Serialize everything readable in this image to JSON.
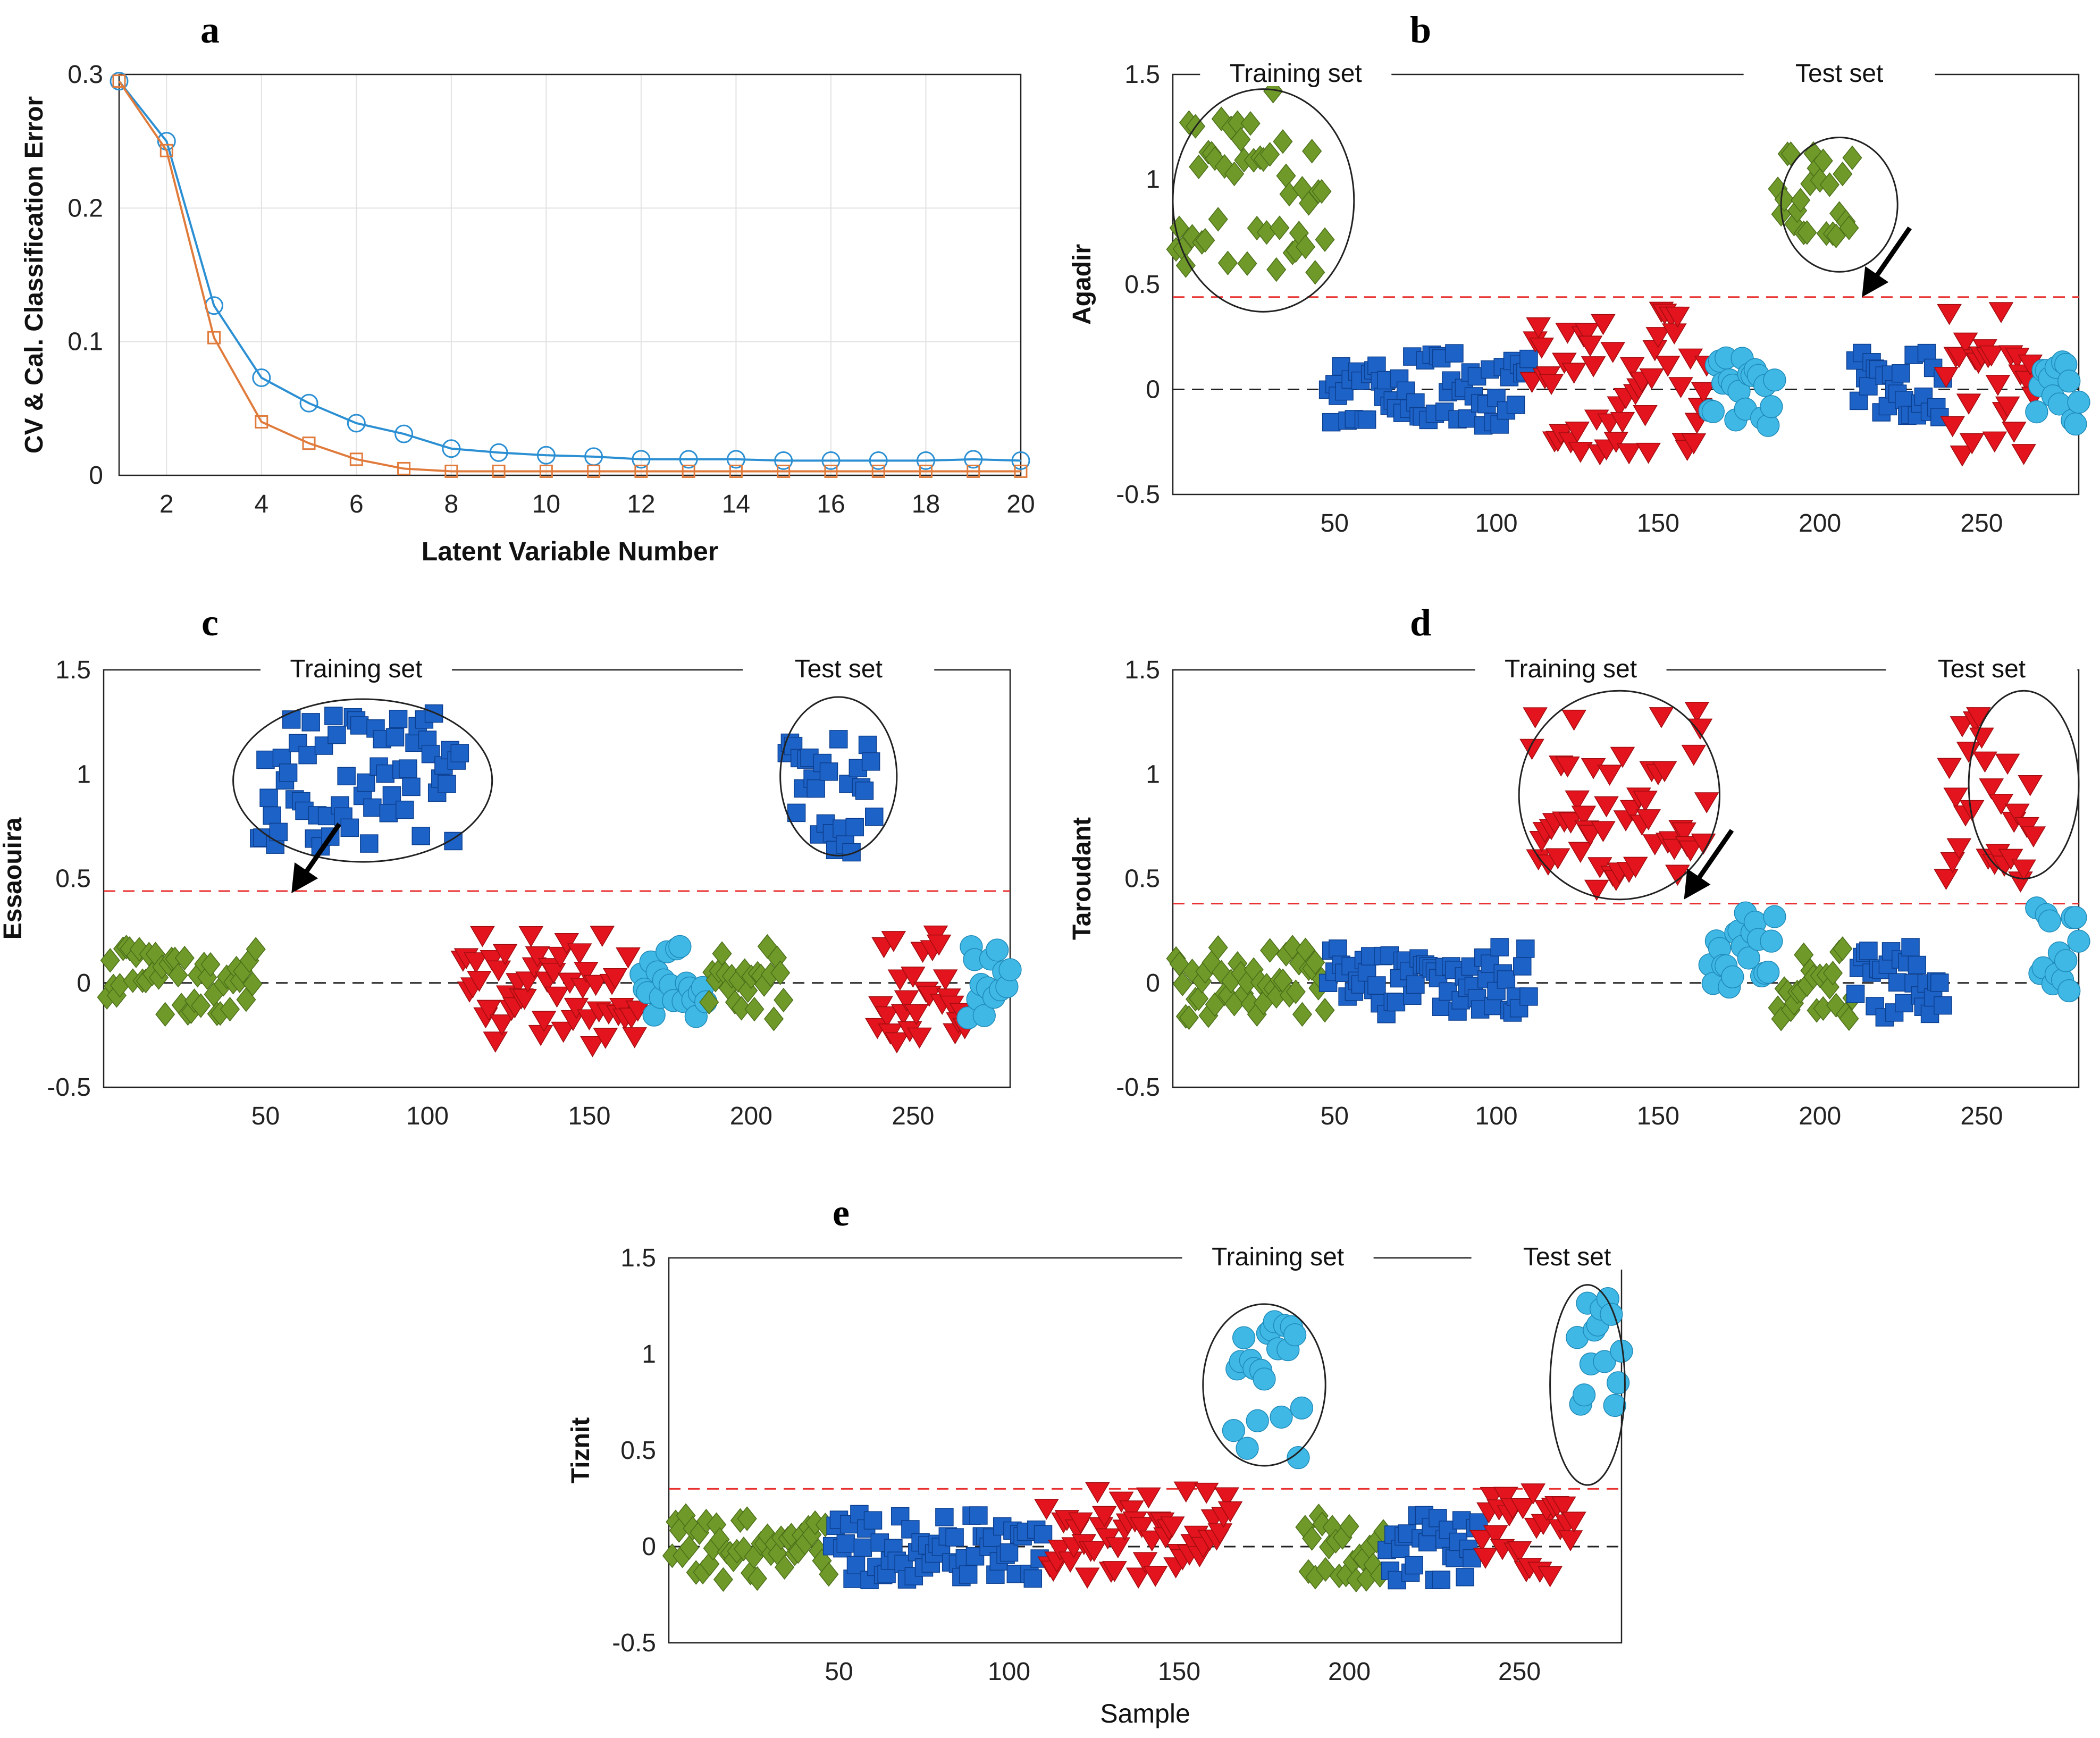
{
  "colors": {
    "green": "#6f9a2a",
    "green_edge": "#4a6e18",
    "blue": "#1d62c6",
    "blue_edge": "#0c3f8f",
    "red": "#e3141d",
    "red_edge": "#a10c10",
    "cyan": "#3fb8e6",
    "cyan_edge": "#1f8ab8",
    "cv_line": "#2b8fd3",
    "cal_line": "#e07b3c",
    "threshold": "#e83030",
    "zero": "#222222"
  },
  "chart_data": [
    {
      "id": "a",
      "letter": "a",
      "type": "line",
      "title": "",
      "xlabel": "Latent Variable Number",
      "ylabel": "CV & Cal. Classification Error",
      "xlim": [
        1,
        20
      ],
      "ylim": [
        0,
        0.3
      ],
      "xticks": [
        2,
        4,
        6,
        8,
        10,
        12,
        14,
        16,
        18,
        20
      ],
      "yticks": [
        0,
        0.1,
        0.2,
        0.3
      ],
      "x": [
        1,
        2,
        3,
        4,
        5,
        6,
        7,
        8,
        9,
        10,
        11,
        12,
        13,
        14,
        15,
        16,
        17,
        18,
        19,
        20
      ],
      "series": [
        {
          "name": "CV",
          "marker": "circle",
          "values": [
            0.295,
            0.25,
            0.127,
            0.073,
            0.054,
            0.039,
            0.031,
            0.02,
            0.017,
            0.015,
            0.014,
            0.012,
            0.012,
            0.012,
            0.011,
            0.011,
            0.011,
            0.011,
            0.012,
            0.011
          ]
        },
        {
          "name": "Cal",
          "marker": "square",
          "values": [
            0.295,
            0.243,
            0.103,
            0.04,
            0.024,
            0.012,
            0.005,
            0.003,
            0.003,
            0.003,
            0.003,
            0.003,
            0.003,
            0.003,
            0.003,
            0.003,
            0.003,
            0.003,
            0.003,
            0.003
          ]
        }
      ]
    },
    {
      "id": "b",
      "letter": "b",
      "type": "scatter",
      "ylabel": "Agadir",
      "xlabel": "",
      "xlim": [
        0,
        280
      ],
      "ylim": [
        -0.5,
        1.5
      ],
      "xticks": [
        50,
        100,
        150,
        200,
        250
      ],
      "yticks": [
        -0.5,
        0,
        0.5,
        1,
        1.5
      ],
      "threshold": 0.44,
      "target_class": "green",
      "annotations": [
        {
          "text": "Training set",
          "x": 38
        },
        {
          "text": "Test set",
          "x": 206
        }
      ],
      "circles": [
        {
          "cx": 28,
          "cy": 0.9,
          "rx": 28,
          "ry": 0.53
        },
        {
          "cx": 206,
          "cy": 0.88,
          "rx": 18,
          "ry": 0.32
        }
      ],
      "arrow": {
        "x": 213,
        "y": 0.44
      }
    },
    {
      "id": "c",
      "letter": "c",
      "type": "scatter",
      "ylabel": "Essaouira",
      "xlabel": "",
      "xlim": [
        0,
        280
      ],
      "ylim": [
        -0.5,
        1.5
      ],
      "xticks": [
        50,
        100,
        150,
        200,
        250
      ],
      "yticks": [
        -0.5,
        0,
        0.5,
        1,
        1.5
      ],
      "threshold": 0.44,
      "target_class": "blue",
      "annotations": [
        {
          "text": "Training set",
          "x": 78
        },
        {
          "text": "Test set",
          "x": 227
        }
      ],
      "circles": [
        {
          "cx": 80,
          "cy": 0.97,
          "rx": 40,
          "ry": 0.39
        },
        {
          "cx": 227,
          "cy": 0.99,
          "rx": 18,
          "ry": 0.38
        }
      ],
      "arrow": {
        "x": 58,
        "y": 0.43
      }
    },
    {
      "id": "d",
      "letter": "d",
      "type": "scatter",
      "ylabel": "Taroudant",
      "xlabel": "",
      "xlim": [
        0,
        280
      ],
      "ylim": [
        -0.5,
        1.5
      ],
      "xticks": [
        50,
        100,
        150,
        200,
        250
      ],
      "yticks": [
        -0.5,
        0,
        0.5,
        1,
        1.5
      ],
      "threshold": 0.38,
      "target_class": "red",
      "annotations": [
        {
          "text": "Training set",
          "x": 123
        },
        {
          "text": "Test set",
          "x": 250
        }
      ],
      "circles": [
        {
          "cx": 138,
          "cy": 0.9,
          "rx": 31,
          "ry": 0.5
        },
        {
          "cx": 263,
          "cy": 0.95,
          "rx": 17,
          "ry": 0.45
        }
      ],
      "arrow": {
        "x": 158,
        "y": 0.4
      }
    },
    {
      "id": "e",
      "letter": "e",
      "type": "scatter",
      "ylabel": "Tiznit",
      "xlabel": "Sample",
      "xlim": [
        0,
        280
      ],
      "ylim": [
        -0.5,
        1.5
      ],
      "xticks": [
        50,
        100,
        150,
        200,
        250
      ],
      "yticks": [
        -0.5,
        0,
        0.5,
        1,
        1.5
      ],
      "threshold": 0.3,
      "target_class": "cyan",
      "annotations": [
        {
          "text": "Training set",
          "x": 179
        },
        {
          "text": "Test set",
          "x": 264
        }
      ],
      "circles": [
        {
          "cx": 175,
          "cy": 0.84,
          "rx": 18,
          "ry": 0.42
        },
        {
          "cx": 270,
          "cy": 0.84,
          "rx": 11,
          "ry": 0.52
        }
      ],
      "arrow": null
    }
  ],
  "sample_groups": [
    {
      "class": "green",
      "set": "train",
      "start": 1,
      "end": 47
    },
    {
      "class": "blue",
      "set": "train",
      "start": 48,
      "end": 110
    },
    {
      "class": "red",
      "set": "train",
      "start": 111,
      "end": 165
    },
    {
      "class": "cyan",
      "set": "train",
      "start": 166,
      "end": 186
    },
    {
      "class": "green",
      "set": "test",
      "start": 187,
      "end": 210
    },
    {
      "class": "blue",
      "set": "test",
      "start": 211,
      "end": 238
    },
    {
      "class": "red",
      "set": "test",
      "start": 239,
      "end": 266
    },
    {
      "class": "cyan",
      "set": "test",
      "start": 267,
      "end": 280
    }
  ],
  "class_markers": {
    "green": "diamond",
    "blue": "square",
    "red": "triangle",
    "cyan": "circle"
  }
}
